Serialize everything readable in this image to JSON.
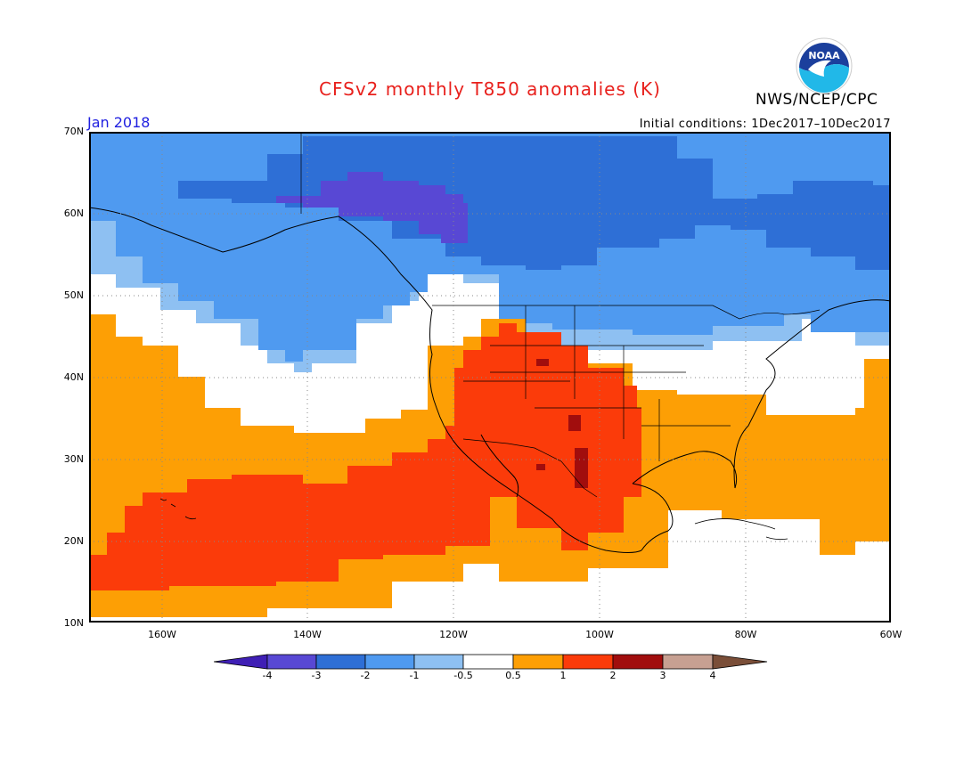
{
  "header": {
    "title": "CFSv2 monthly T850 anomalies (K)",
    "month": "Jan 2018",
    "initial_conditions": "Initial conditions: 1Dec2017–10Dec2017",
    "agency": "NWS/NCEP/CPC",
    "logo_text": "NOAA"
  },
  "axes": {
    "lat_labels": [
      "70N",
      "60N",
      "50N",
      "40N",
      "30N",
      "20N",
      "10N"
    ],
    "lon_labels": [
      "160W",
      "140W",
      "120W",
      "100W",
      "80W",
      "60W"
    ],
    "lat_range": [
      10,
      70
    ],
    "lon_range": [
      -170,
      -60
    ]
  },
  "colorbar": {
    "labels": [
      "-4",
      "-3",
      "-2",
      "-1",
      "-0.5",
      "0.5",
      "1",
      "2",
      "3",
      "4"
    ],
    "colors": [
      "#3f1fb5",
      "#5848d4",
      "#2e6fd6",
      "#4f9af0",
      "#8ec0f2",
      "#ffffff",
      "#fd9f05",
      "#fb3b0a",
      "#a10d0d",
      "#c7a092",
      "#7a4e38"
    ]
  },
  "palette": {
    "neg3": "#5848d4",
    "neg2": "#2e6fd6",
    "neg1": "#4f9af0",
    "neg05": "#8ec0f2",
    "neutral": "#ffffff",
    "pos05": "#fd9f05",
    "pos1": "#fb3b0a",
    "pos2": "#a10d0d"
  }
}
